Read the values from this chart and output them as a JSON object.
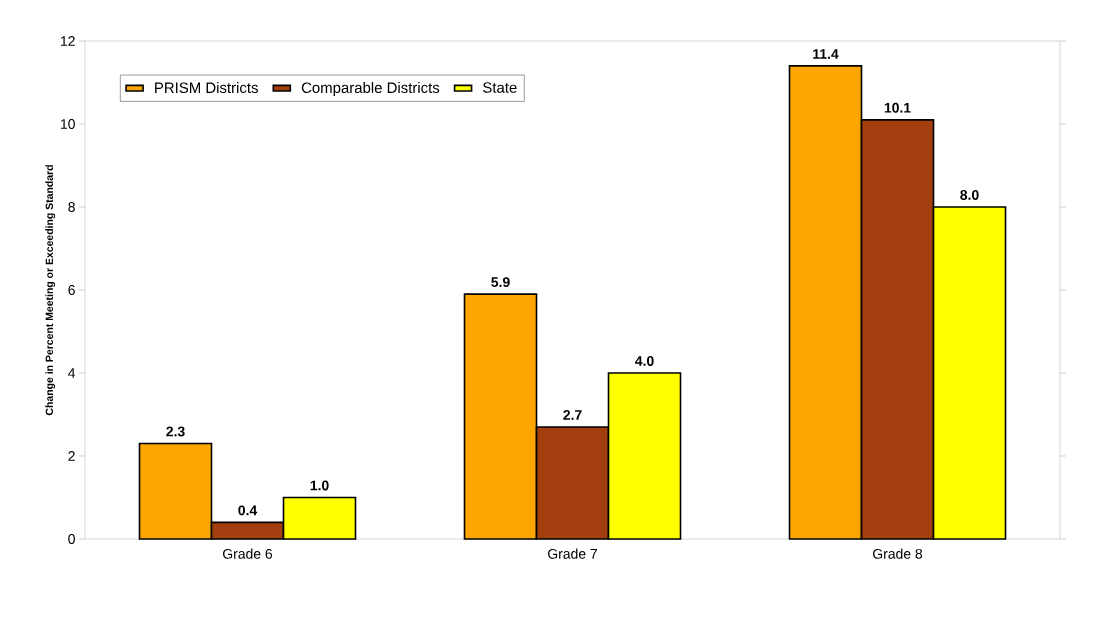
{
  "chart_data": {
    "type": "bar",
    "categories": [
      "Grade 6",
      "Grade 7",
      "Grade 8"
    ],
    "ylabel": "Change in Percent Meeting or Exceeding Standard",
    "ylim": [
      0,
      12
    ],
    "yticks": [
      0,
      2,
      4,
      6,
      8,
      10,
      12
    ],
    "legend": "top left",
    "series": [
      {
        "name": "PRISM Districts",
        "color": "#ffa500",
        "values": [
          2.3,
          5.9,
          11.4
        ],
        "value_labels": [
          "2.3",
          "5.9",
          "11.4"
        ]
      },
      {
        "name": "Comparable Districts",
        "color": "#a33f0f",
        "values": [
          0.4,
          2.7,
          10.1
        ],
        "value_labels": [
          "0.4",
          "2.7",
          "10.1"
        ]
      },
      {
        "name": "State",
        "color": "#ffff00",
        "values": [
          1.0,
          4.0,
          8.0
        ],
        "value_labels": [
          "1.0",
          "4.0",
          "8.0"
        ]
      }
    ]
  }
}
